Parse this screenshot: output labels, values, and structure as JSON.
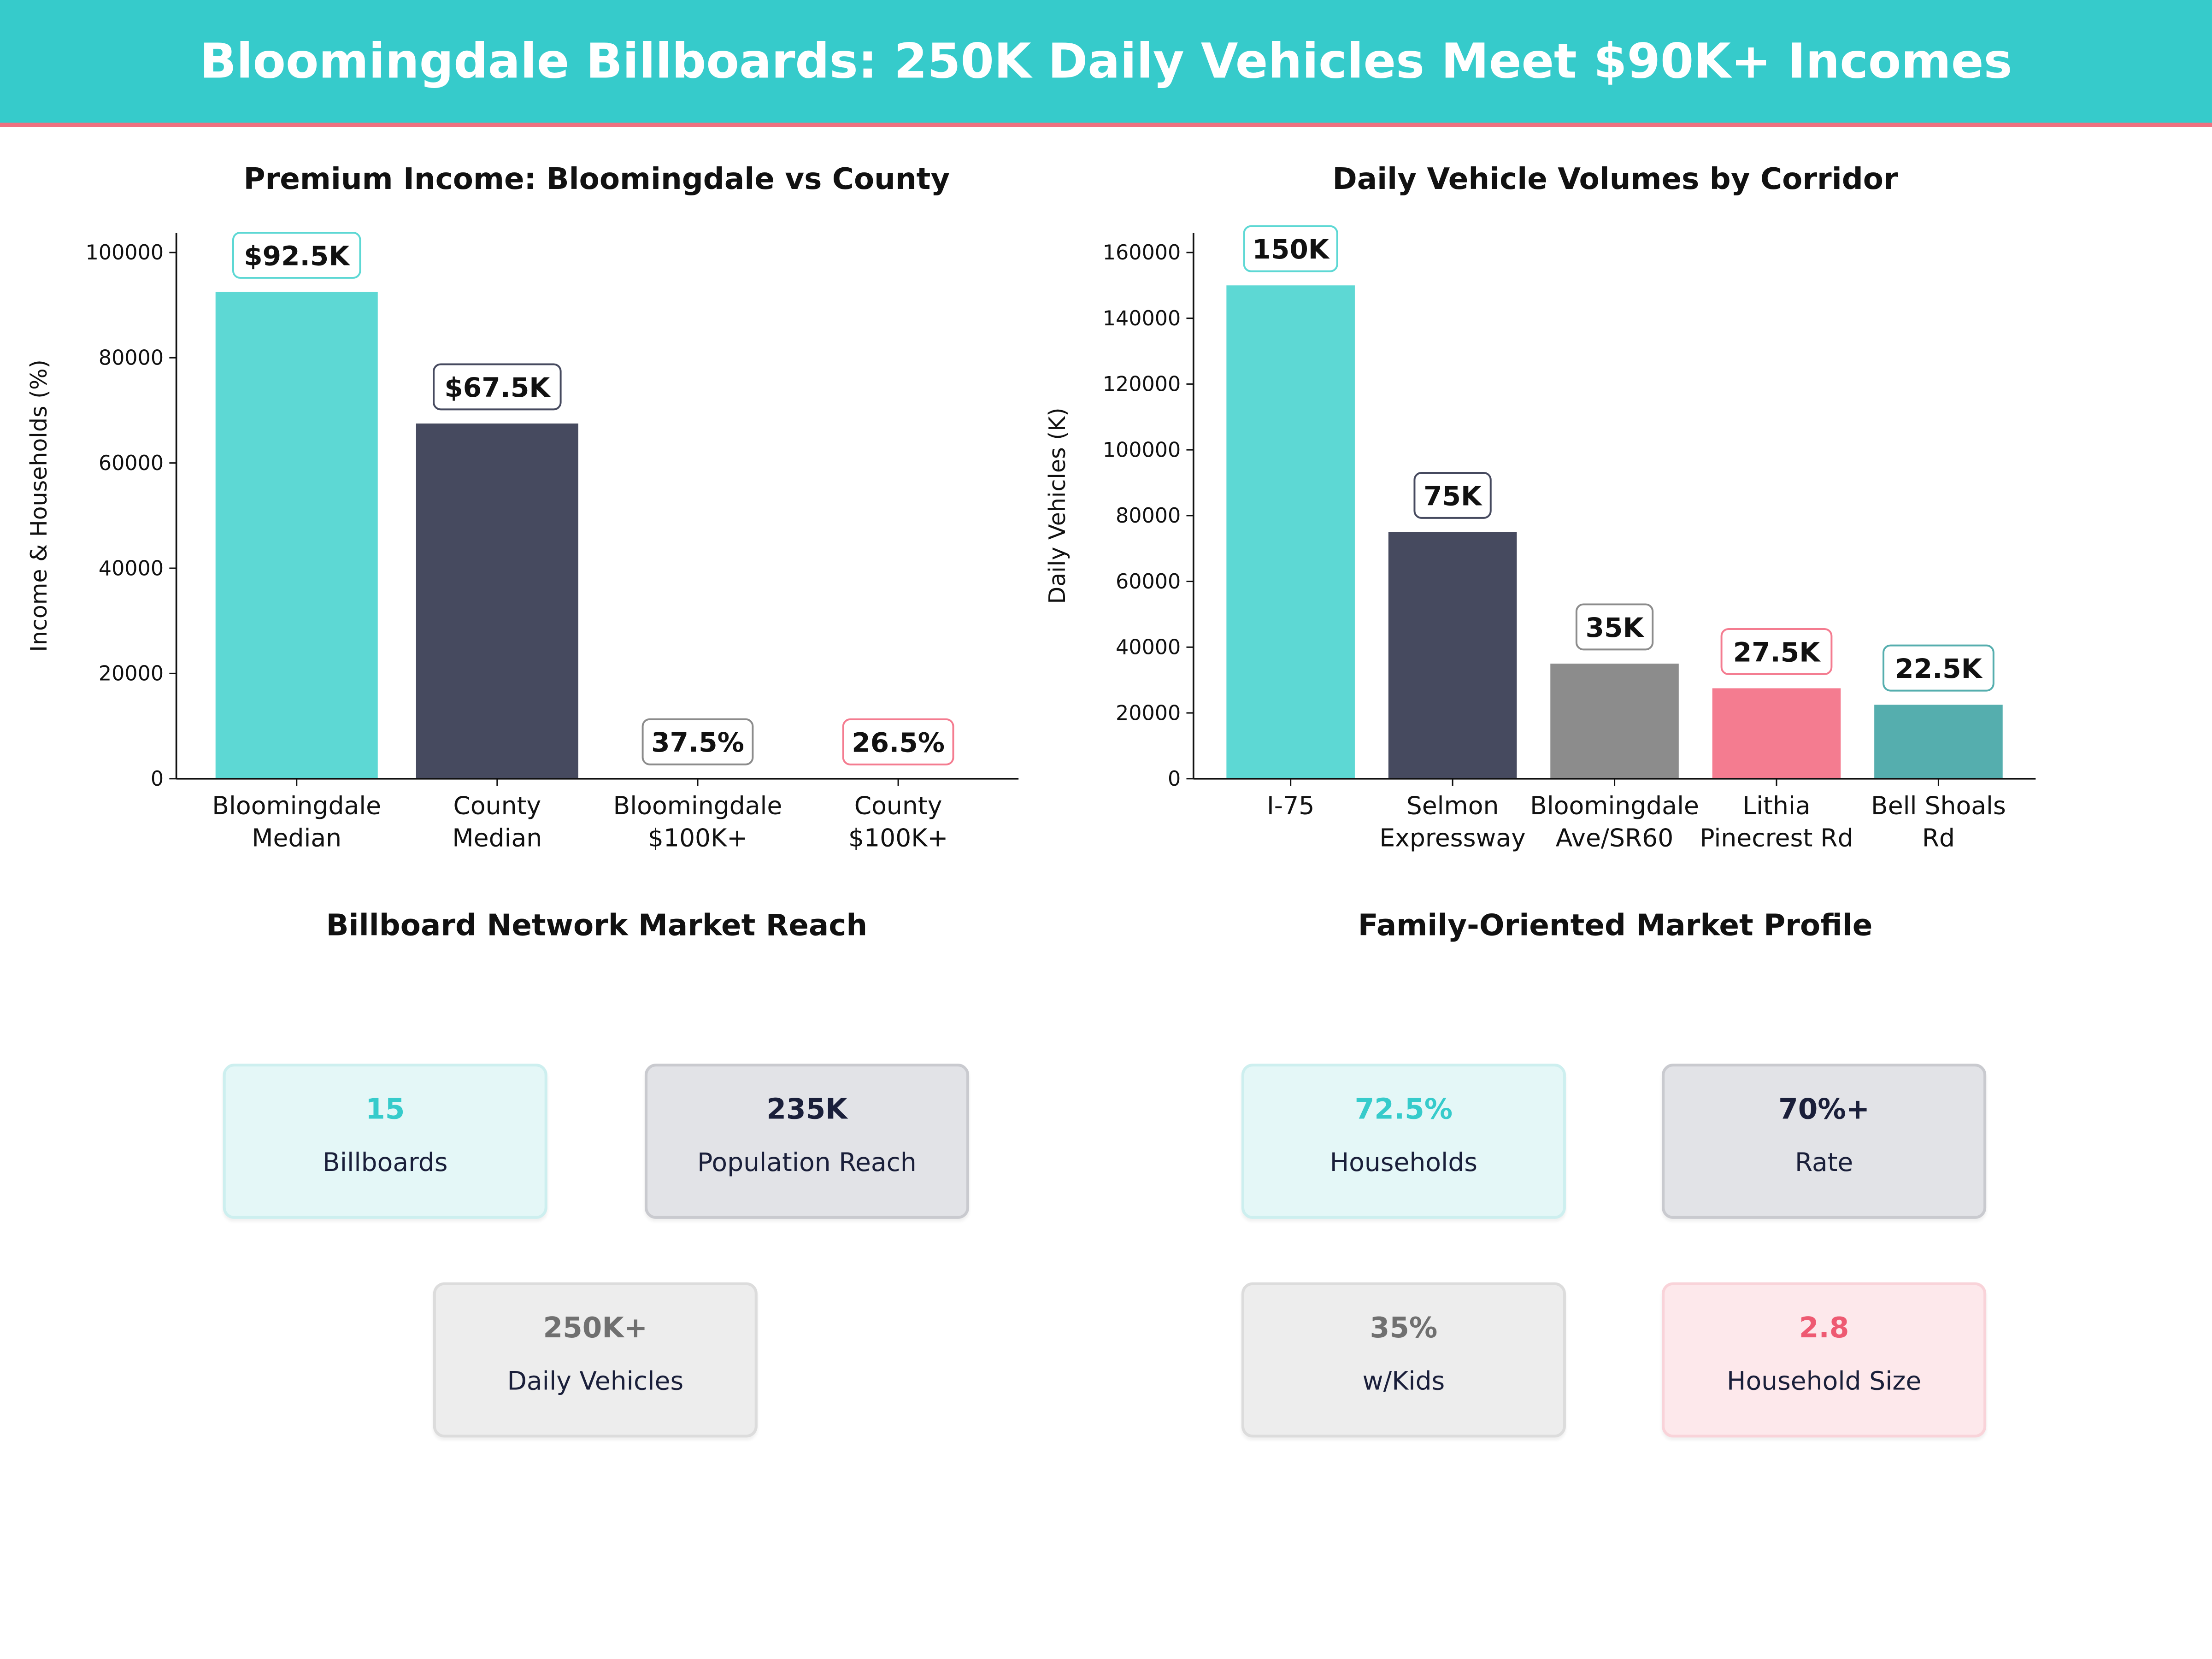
{
  "header": {
    "title": "Bloomingdale Billboards: 250K Daily Vehicles Meet $90K+ Incomes"
  },
  "chart_data": [
    {
      "type": "bar",
      "title": "Premium Income: Bloomingdale vs County",
      "xlabel": "",
      "ylabel": "Income & Households (%)",
      "categories": [
        "Bloomingdale\nMedian",
        "County\nMedian",
        "Bloomingdale\n$100K+",
        "County\n$100K+"
      ],
      "values": [
        92500,
        67500,
        37.5,
        26.5
      ],
      "data_labels": [
        "$92.5K",
        "$67.5K",
        "37.5%",
        "26.5%"
      ],
      "colors": [
        "#5DD8D4",
        "#464A5F",
        "#8C8C8C",
        "#F47C90"
      ],
      "ylim": [
        0,
        103750
      ],
      "yticks": [
        0,
        20000,
        40000,
        60000,
        80000,
        100000
      ],
      "grid": false
    },
    {
      "type": "bar",
      "title": "Daily Vehicle Volumes by Corridor",
      "xlabel": "",
      "ylabel": "Daily Vehicles (K)",
      "categories": [
        "I-75",
        "Selmon\nExpressway",
        "Bloomingdale\nAve/SR60",
        "Lithia\nPinecrest Rd",
        "Bell Shoals\nRd"
      ],
      "values": [
        150000,
        75000,
        35000,
        27500,
        22500
      ],
      "data_labels": [
        "150K",
        "75K",
        "35K",
        "27.5K",
        "22.5K"
      ],
      "colors": [
        "#5DD8D4",
        "#464A5F",
        "#8C8C8C",
        "#F47C90",
        "#55AEAE"
      ],
      "ylim": [
        0,
        166000
      ],
      "yticks": [
        0,
        20000,
        40000,
        60000,
        80000,
        100000,
        120000,
        140000,
        160000
      ],
      "grid": false
    }
  ],
  "reach": {
    "title": "Billboard Network Market Reach",
    "cards": [
      {
        "value": "15",
        "label": "Billboards",
        "theme": "teal"
      },
      {
        "value": "235K",
        "label": "Population Reach",
        "theme": "dark"
      },
      {
        "value": "250K+",
        "label": "Daily Vehicles",
        "theme": "gray"
      }
    ]
  },
  "profile": {
    "title": "Family-Oriented Market Profile",
    "cards": [
      {
        "value": "72.5%",
        "label": "Households",
        "theme": "teal"
      },
      {
        "value": "70%+",
        "label": "Rate",
        "theme": "dark"
      },
      {
        "value": "35%",
        "label": "w/Kids",
        "theme": "gray"
      },
      {
        "value": "2.8",
        "label": "Household Size",
        "theme": "pink"
      }
    ]
  },
  "themes": {
    "teal": {
      "bg": "#E4F7F7",
      "border": "#CDEFEF",
      "value": "#36CBCB"
    },
    "dark": {
      "bg": "#E2E3E7",
      "border": "#C9CACF",
      "value": "#1A1F3A"
    },
    "gray": {
      "bg": "#EDEDED",
      "border": "#DCDCDC",
      "value": "#707070"
    },
    "pink": {
      "bg": "#FDE8EB",
      "border": "#F9D3D9",
      "value": "#EE5A72"
    }
  }
}
